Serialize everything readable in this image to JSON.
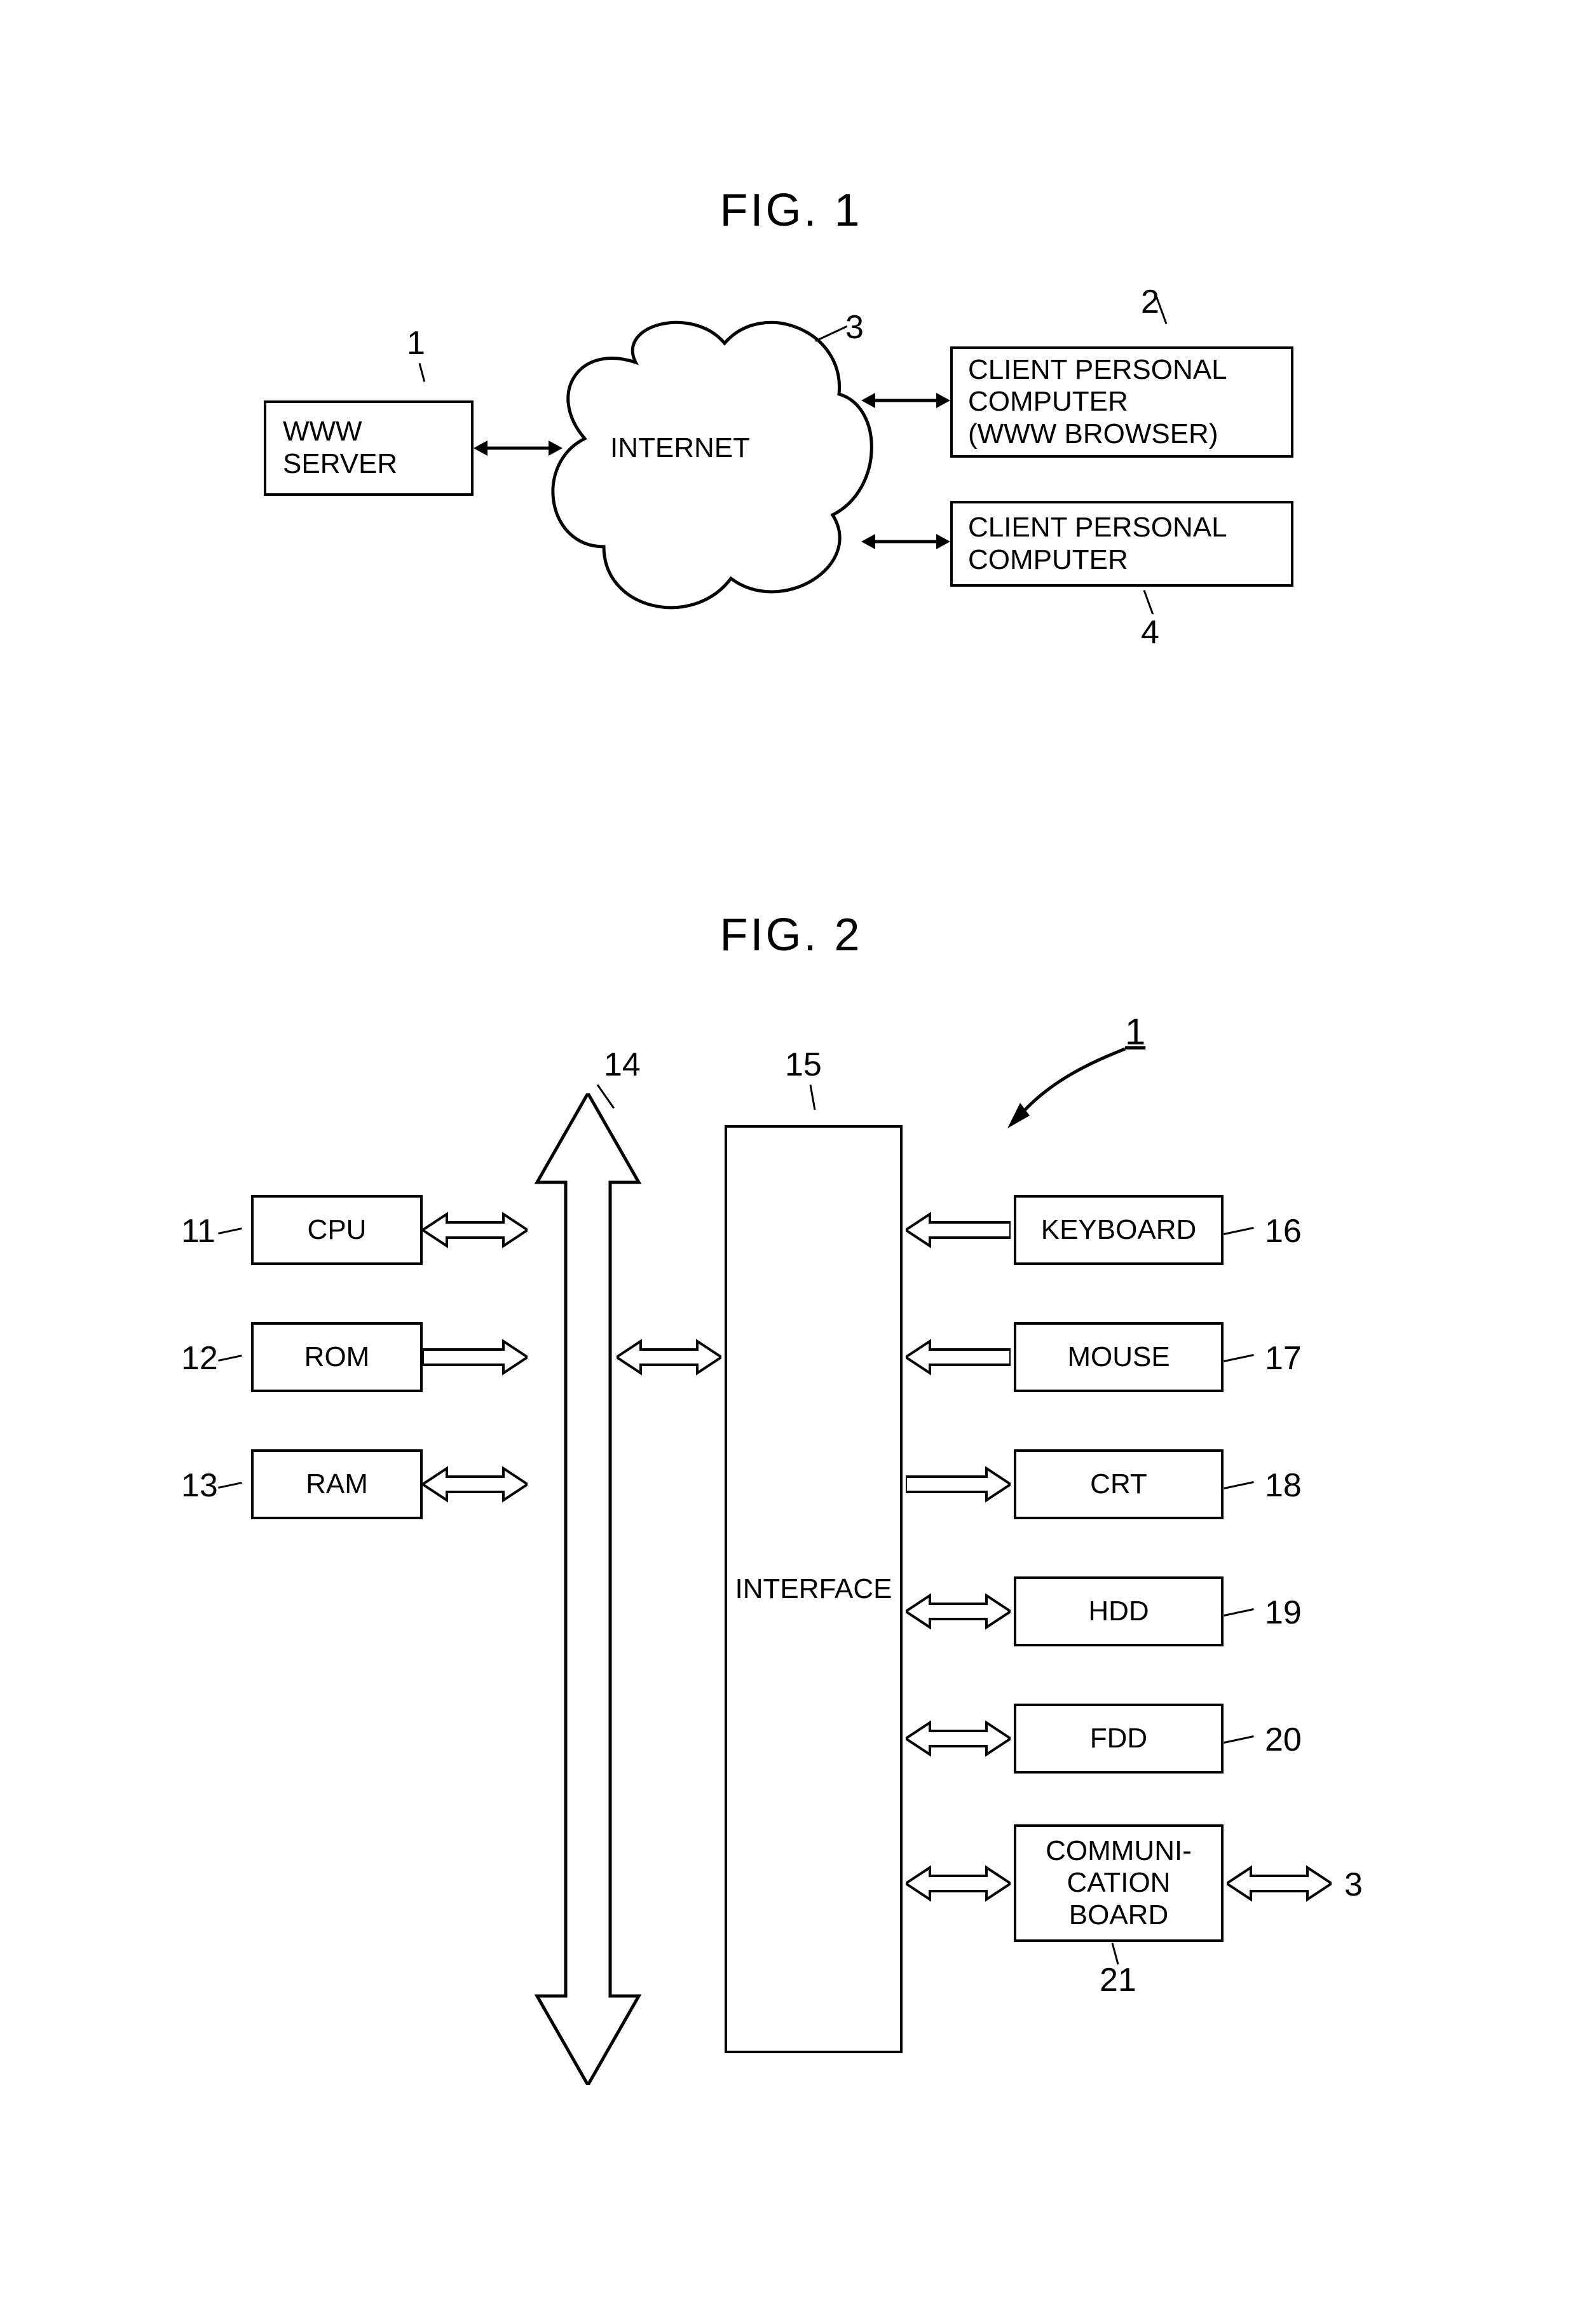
{
  "figures": {
    "fig1": {
      "title": "FIG. 1",
      "title_fontsize": 72,
      "nodes": {
        "server": {
          "label": "WWW\nSERVER",
          "ref": "1"
        },
        "internet": {
          "label": "INTERNET",
          "ref": "3"
        },
        "client_a": {
          "label": "CLIENT PERSONAL\nCOMPUTER\n(WWW BROWSER)",
          "ref": "2"
        },
        "client_b": {
          "label": "CLIENT PERSONAL\nCOMPUTER",
          "ref": "4"
        }
      },
      "node_fontsize": 44,
      "ref_fontsize": 52,
      "stroke_width": 4,
      "colors": {
        "stroke": "#000000",
        "fill": "#ffffff",
        "text": "#000000"
      }
    },
    "fig2": {
      "title": "FIG. 2",
      "title_fontsize": 72,
      "system_ref": "1",
      "bus_ref": "14",
      "interface": {
        "label": "INTERFACE",
        "ref": "15"
      },
      "left_nodes": [
        {
          "label": "CPU",
          "ref": "11",
          "arrow": "bi"
        },
        {
          "label": "ROM",
          "ref": "12",
          "arrow": "right"
        },
        {
          "label": "RAM",
          "ref": "13",
          "arrow": "bi"
        }
      ],
      "right_nodes": [
        {
          "label": "KEYBOARD",
          "ref": "16",
          "arrow": "left",
          "extra_ref": null
        },
        {
          "label": "MOUSE",
          "ref": "17",
          "arrow": "left",
          "extra_ref": null
        },
        {
          "label": "CRT",
          "ref": "18",
          "arrow": "right",
          "extra_ref": null
        },
        {
          "label": "HDD",
          "ref": "19",
          "arrow": "bi",
          "extra_ref": null
        },
        {
          "label": "FDD",
          "ref": "20",
          "arrow": "bi",
          "extra_ref": null
        },
        {
          "label": "COMMUNI-\nCATION\nBOARD",
          "ref": "21",
          "arrow": "bi",
          "extra_ref": "3"
        }
      ],
      "node_fontsize": 44,
      "ref_fontsize": 52,
      "stroke_width": 4,
      "colors": {
        "stroke": "#000000",
        "fill": "#ffffff",
        "text": "#000000"
      }
    }
  }
}
